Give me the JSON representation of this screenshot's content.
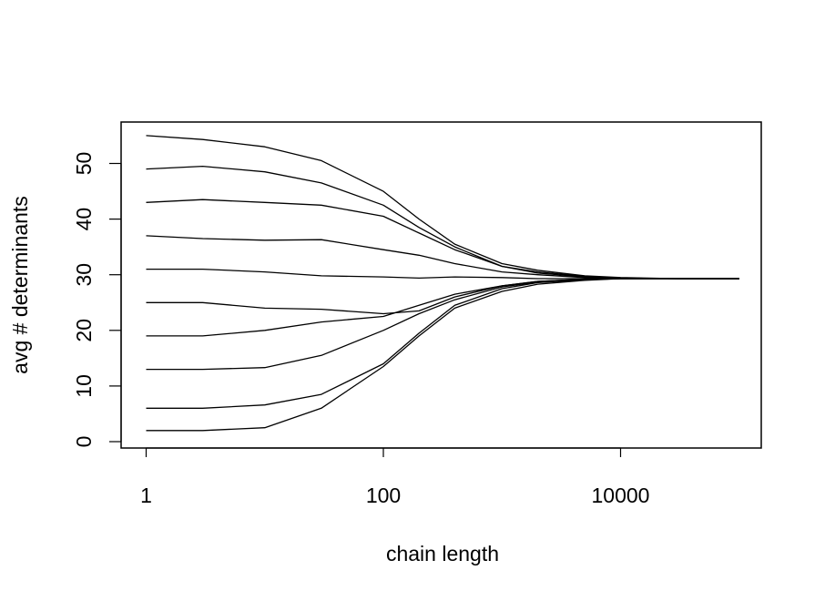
{
  "chart_data": {
    "type": "line",
    "xlabel": "chain length",
    "ylabel": "avg # determinants",
    "x_scale": "log10",
    "xlim": [
      1,
      100000
    ],
    "ylim": [
      0,
      55
    ],
    "x_ticks": [
      1,
      100,
      10000
    ],
    "x_tick_labels": [
      "1",
      "100",
      "10000"
    ],
    "y_ticks": [
      0,
      10,
      20,
      30,
      40,
      50
    ],
    "y_tick_labels": [
      "0",
      "10",
      "20",
      "30",
      "40",
      "50"
    ],
    "grid": false,
    "line_color": "#000000",
    "x": [
      1,
      3,
      10,
      30,
      100,
      200,
      400,
      1000,
      2000,
      5000,
      10000,
      30000,
      100000
    ],
    "series": [
      {
        "values": [
          55,
          54.3,
          53,
          50.5,
          45,
          40,
          35.5,
          32,
          30.8,
          29.8,
          29.5,
          29.3,
          29.3
        ]
      },
      {
        "values": [
          49,
          49.5,
          48.5,
          46.5,
          42.5,
          38.5,
          35,
          31.5,
          30.5,
          29.7,
          29.4,
          29.3,
          29.3
        ]
      },
      {
        "values": [
          43,
          43.5,
          43,
          42.5,
          40.5,
          37.5,
          34.5,
          31.5,
          30.3,
          29.6,
          29.4,
          29.3,
          29.3
        ]
      },
      {
        "values": [
          37,
          36.5,
          36.2,
          36.3,
          34.5,
          33.5,
          32,
          30.5,
          30,
          29.5,
          29.4,
          29.3,
          29.3
        ]
      },
      {
        "values": [
          31,
          31,
          30.5,
          29.8,
          29.6,
          29.4,
          29.6,
          29.5,
          29.3,
          29.3,
          29.3,
          29.3,
          29.3
        ]
      },
      {
        "values": [
          25,
          25,
          24,
          23.8,
          23,
          23.5,
          26,
          28,
          28.8,
          29.2,
          29.3,
          29.3,
          29.3
        ]
      },
      {
        "values": [
          19,
          19,
          20,
          21.5,
          22.5,
          24.5,
          26.5,
          28,
          28.8,
          29.2,
          29.3,
          29.3,
          29.3
        ]
      },
      {
        "values": [
          13,
          13,
          13.3,
          15.5,
          20,
          23,
          25.5,
          27.8,
          28.7,
          29.2,
          29.3,
          29.3,
          29.3
        ]
      },
      {
        "values": [
          6,
          6,
          6.6,
          8.5,
          14,
          19.5,
          24.5,
          27.5,
          28.6,
          29.1,
          29.3,
          29.3,
          29.3
        ]
      },
      {
        "values": [
          2,
          2,
          2.5,
          6,
          13.5,
          19,
          24,
          27,
          28.3,
          29,
          29.3,
          29.3,
          29.3
        ]
      }
    ]
  }
}
